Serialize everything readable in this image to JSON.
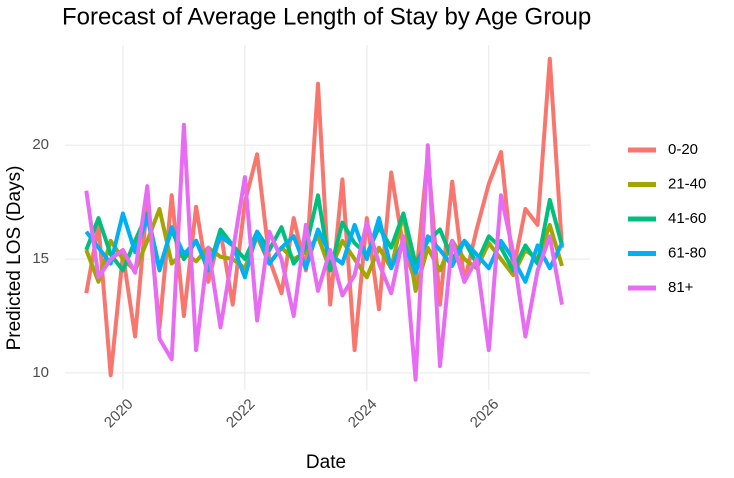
{
  "chart_data": {
    "type": "line",
    "title": "Forecast of Average Length of Stay by Age Group",
    "x_label": "Date",
    "y_label": "Predicted LOS (Days)",
    "x": [
      2019.4,
      2019.6,
      2019.8,
      2020.0,
      2020.2,
      2020.4,
      2020.6,
      2020.8,
      2021.0,
      2021.2,
      2021.4,
      2021.6,
      2021.8,
      2022.0,
      2022.2,
      2022.4,
      2022.6,
      2022.8,
      2023.0,
      2023.2,
      2023.4,
      2023.6,
      2023.8,
      2024.0,
      2024.2,
      2024.4,
      2024.6,
      2024.8,
      2025.0,
      2025.2,
      2025.4,
      2025.6,
      2025.8,
      2026.0,
      2026.2,
      2026.4,
      2026.6,
      2026.8,
      2027.0,
      2027.2
    ],
    "series": [
      {
        "name": "0-20",
        "color": "#f8766d",
        "values": [
          13.5,
          16.5,
          9.9,
          15.2,
          11.6,
          17.6,
          12.0,
          17.8,
          12.5,
          17.3,
          14.0,
          16.2,
          13.0,
          17.5,
          19.6,
          15.0,
          13.5,
          16.8,
          14.5,
          22.7,
          13.0,
          18.5,
          11.0,
          16.8,
          12.8,
          18.8,
          15.5,
          14.0,
          19.6,
          13.0,
          18.4,
          14.0,
          16.3,
          18.3,
          19.7,
          14.5,
          17.2,
          16.5,
          23.8,
          15.5
        ]
      },
      {
        "name": "21-40",
        "color": "#a3a500",
        "values": [
          15.4,
          14.0,
          15.8,
          15.0,
          14.5,
          15.8,
          17.2,
          14.8,
          15.3,
          14.9,
          15.5,
          15.1,
          15.0,
          14.6,
          16.0,
          14.8,
          15.5,
          15.0,
          15.3,
          16.0,
          14.5,
          15.8,
          15.0,
          14.2,
          15.5,
          14.6,
          17.0,
          13.6,
          15.5,
          14.5,
          15.8,
          15.0,
          14.6,
          15.7,
          15.0,
          14.3,
          15.4,
          15.0,
          16.5,
          14.7
        ]
      },
      {
        "name": "41-60",
        "color": "#00bf7d",
        "values": [
          15.4,
          16.8,
          15.2,
          14.5,
          15.8,
          17.0,
          14.6,
          16.3,
          15.0,
          15.8,
          14.5,
          16.3,
          15.6,
          15.0,
          16.2,
          15.4,
          16.4,
          14.8,
          15.5,
          17.8,
          14.5,
          16.6,
          15.7,
          15.2,
          16.4,
          15.5,
          17.0,
          14.8,
          15.8,
          16.3,
          15.0,
          15.8,
          14.8,
          16.0,
          15.5,
          14.5,
          15.6,
          14.8,
          17.6,
          15.6
        ]
      },
      {
        "name": "61-80",
        "color": "#00b0f6",
        "values": [
          16.2,
          15.5,
          14.8,
          17.0,
          15.3,
          16.8,
          14.5,
          16.4,
          15.2,
          15.8,
          14.6,
          16.0,
          15.6,
          14.2,
          16.2,
          14.8,
          15.5,
          16.0,
          14.6,
          16.3,
          15.2,
          14.8,
          16.5,
          15.0,
          16.8,
          14.6,
          15.8,
          14.4,
          16.0,
          15.4,
          14.7,
          15.8,
          15.2,
          14.6,
          15.8,
          15.0,
          14.0,
          15.6,
          14.6,
          15.7
        ]
      },
      {
        "name": "81+",
        "color": "#e76bf3",
        "values": [
          18.0,
          14.2,
          15.0,
          15.4,
          14.4,
          18.2,
          11.5,
          10.6,
          20.9,
          11.0,
          15.5,
          12.0,
          15.3,
          18.6,
          12.3,
          16.2,
          15.0,
          12.5,
          16.5,
          13.6,
          15.4,
          13.4,
          14.3,
          16.6,
          14.8,
          13.5,
          16.0,
          9.7,
          20.0,
          10.3,
          15.8,
          14.0,
          15.0,
          11.0,
          17.8,
          15.3,
          11.6,
          14.5,
          16.0,
          13.0
        ]
      }
    ],
    "xlim": [
      2019.05,
      2027.66
    ],
    "xticks": [
      2020,
      2022,
      2024,
      2026
    ],
    "ylim": [
      9.25,
      24.4
    ],
    "yticks": [
      10,
      15,
      20
    ],
    "grid": true,
    "legend": "right"
  }
}
